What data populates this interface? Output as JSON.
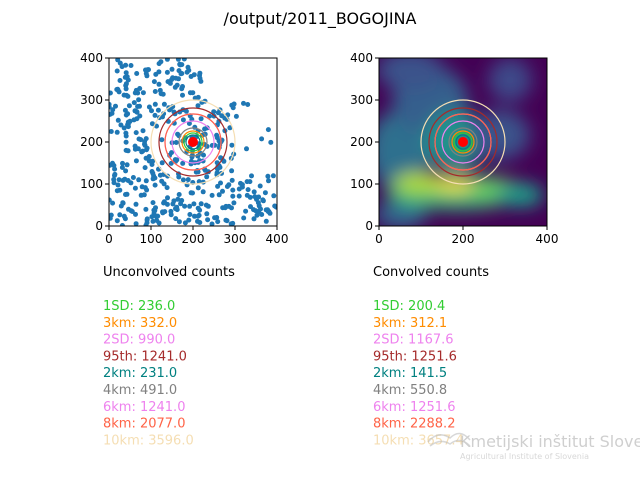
{
  "figure_title": "/output/2011_BOGOJINA",
  "colors": {
    "points": "#1f77b4",
    "center": "#ff0000",
    "ring_1SD": "#32cd32",
    "ring_3km": "#ff8c00",
    "ring_2SD": "#ee82ee",
    "ring_95th": "#a52a2a",
    "ring_2km": "#008080",
    "ring_4km": "#808080",
    "ring_6km": "#ee82ee",
    "ring_8km": "#ff6347",
    "ring_10km": "#f5deb3"
  },
  "chart_data": [
    {
      "type": "scatter",
      "panel": "left",
      "xlim": [
        0,
        400
      ],
      "ylim": [
        0,
        400
      ],
      "x_ticks": [
        "0",
        "100",
        "200",
        "300",
        "400"
      ],
      "y_ticks": [
        "0",
        "100",
        "200",
        "300",
        "400"
      ],
      "center": [
        200,
        200
      ],
      "point_count": 460,
      "rings": [
        {
          "key": "2km",
          "color": "#008080"
        },
        {
          "key": "1SD",
          "color": "#32cd32"
        },
        {
          "key": "3km",
          "color": "#ff8c00"
        },
        {
          "key": "4km",
          "color": "#808080"
        },
        {
          "key": "6km",
          "color": "#ee82ee"
        },
        {
          "key": "2SD",
          "color": "#ee82ee"
        },
        {
          "key": "8km",
          "color": "#ff6347"
        },
        {
          "key": "95th",
          "color": "#a52a2a"
        },
        {
          "key": "10km",
          "color": "#f5deb3"
        }
      ]
    },
    {
      "type": "heatmap",
      "panel": "right",
      "xlim": [
        0,
        400
      ],
      "ylim": [
        0,
        400
      ],
      "x_ticks": [
        "0",
        "200",
        "400"
      ],
      "y_ticks": [
        "0",
        "100",
        "200",
        "300",
        "400"
      ],
      "colormap": "viridis",
      "center": [
        200,
        200
      ],
      "rings": [
        {
          "key": "2km",
          "color": "#008080"
        },
        {
          "key": "1SD",
          "color": "#32cd32"
        },
        {
          "key": "3km",
          "color": "#ff8c00"
        },
        {
          "key": "4km",
          "color": "#808080"
        },
        {
          "key": "6km",
          "color": "#ee82ee"
        },
        {
          "key": "2SD",
          "color": "#ee82ee"
        },
        {
          "key": "8km",
          "color": "#ff6347"
        },
        {
          "key": "95th",
          "color": "#a52a2a"
        },
        {
          "key": "10km",
          "color": "#f5deb3"
        }
      ]
    }
  ],
  "unconvolved": {
    "heading": "Unconvolved counts",
    "lines": [
      {
        "text": "1SD: 236.0",
        "color": "#32cd32"
      },
      {
        "text": "3km: 332.0",
        "color": "#ff8c00"
      },
      {
        "text": "2SD: 990.0",
        "color": "#ee82ee"
      },
      {
        "text": "95th: 1241.0",
        "color": "#a52a2a"
      },
      {
        "text": "2km: 231.0",
        "color": "#008080"
      },
      {
        "text": "4km: 491.0",
        "color": "#808080"
      },
      {
        "text": "6km: 1241.0",
        "color": "#ee82ee"
      },
      {
        "text": "8km: 2077.0",
        "color": "#ff6347"
      },
      {
        "text": "10km: 3596.0",
        "color": "#f5deb3"
      }
    ]
  },
  "convolved": {
    "heading": "Convolved counts",
    "lines": [
      {
        "text": "1SD: 200.4",
        "color": "#32cd32"
      },
      {
        "text": "3km: 312.1",
        "color": "#ff8c00"
      },
      {
        "text": "2SD: 1167.6",
        "color": "#ee82ee"
      },
      {
        "text": "95th: 1251.6",
        "color": "#a52a2a"
      },
      {
        "text": "2km: 141.5",
        "color": "#008080"
      },
      {
        "text": "4km: 550.8",
        "color": "#808080"
      },
      {
        "text": "6km: 1251.6",
        "color": "#ee82ee"
      },
      {
        "text": "8km: 2288.2",
        "color": "#ff6347"
      },
      {
        "text": "10km: 3657.4",
        "color": "#f5deb3"
      }
    ]
  },
  "watermark": {
    "main": "Kmetijski inštitut Slovenije",
    "sub": "Agricultural Institute of Slovenia"
  }
}
